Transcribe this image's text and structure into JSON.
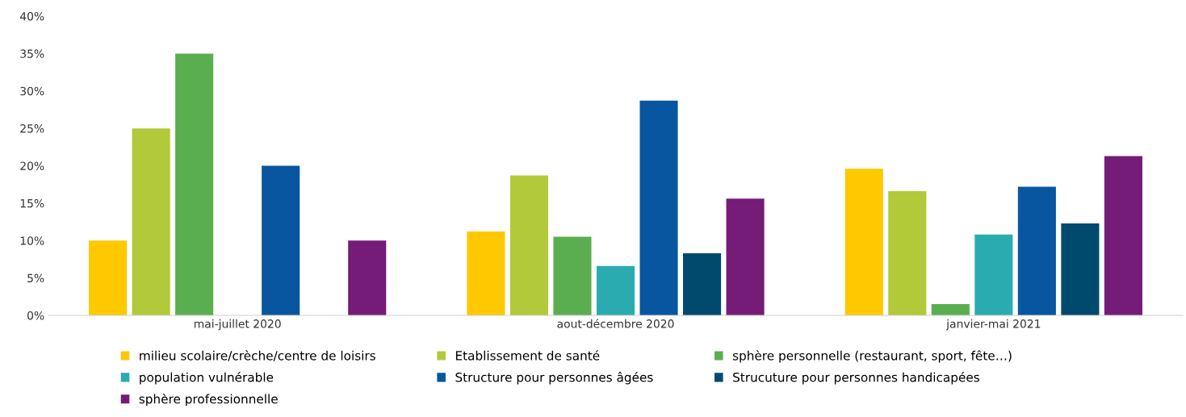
{
  "chart_data": {
    "type": "bar",
    "categories": [
      "mai-juillet 2020",
      "aout-décembre 2020",
      "janvier-mai 2021"
    ],
    "series": [
      {
        "name": "milieu scolaire/crèche/centre de loisirs",
        "color": "#ffc800",
        "values": [
          10,
          11.2,
          19.6
        ]
      },
      {
        "name": "Etablissement de santé",
        "color": "#b2c93a",
        "values": [
          25,
          18.7,
          16.6
        ]
      },
      {
        "name": "sphère personnelle (restaurant, sport, fête…)",
        "color": "#5aae50",
        "values": [
          35,
          10.5,
          1.5
        ]
      },
      {
        "name": "population vulnérable",
        "color": "#2aabb0",
        "values": [
          null,
          6.6,
          10.8
        ]
      },
      {
        "name": "Structure pour personnes âgées",
        "color": "#0856a0",
        "values": [
          20,
          28.7,
          17.2
        ]
      },
      {
        "name": "Strucuture pour personnes handicapées",
        "color": "#004a6e",
        "values": [
          null,
          8.3,
          12.3
        ]
      },
      {
        "name": "sphère professionnelle",
        "color": "#741c78",
        "values": [
          10,
          15.6,
          21.3
        ]
      }
    ],
    "ylim": [
      0,
      40
    ],
    "yticks": [
      {
        "value": 0,
        "label": "0%"
      },
      {
        "value": 5,
        "label": "5%"
      },
      {
        "value": 10,
        "label": "10%"
      },
      {
        "value": 15,
        "label": "15%"
      },
      {
        "value": 20,
        "label": "20%"
      },
      {
        "value": 25,
        "label": "25%"
      },
      {
        "value": 30,
        "label": "30%"
      },
      {
        "value": 35,
        "label": "35%"
      },
      {
        "value": 40,
        "label": "40%"
      }
    ],
    "grid": false,
    "legend": "bottom"
  }
}
